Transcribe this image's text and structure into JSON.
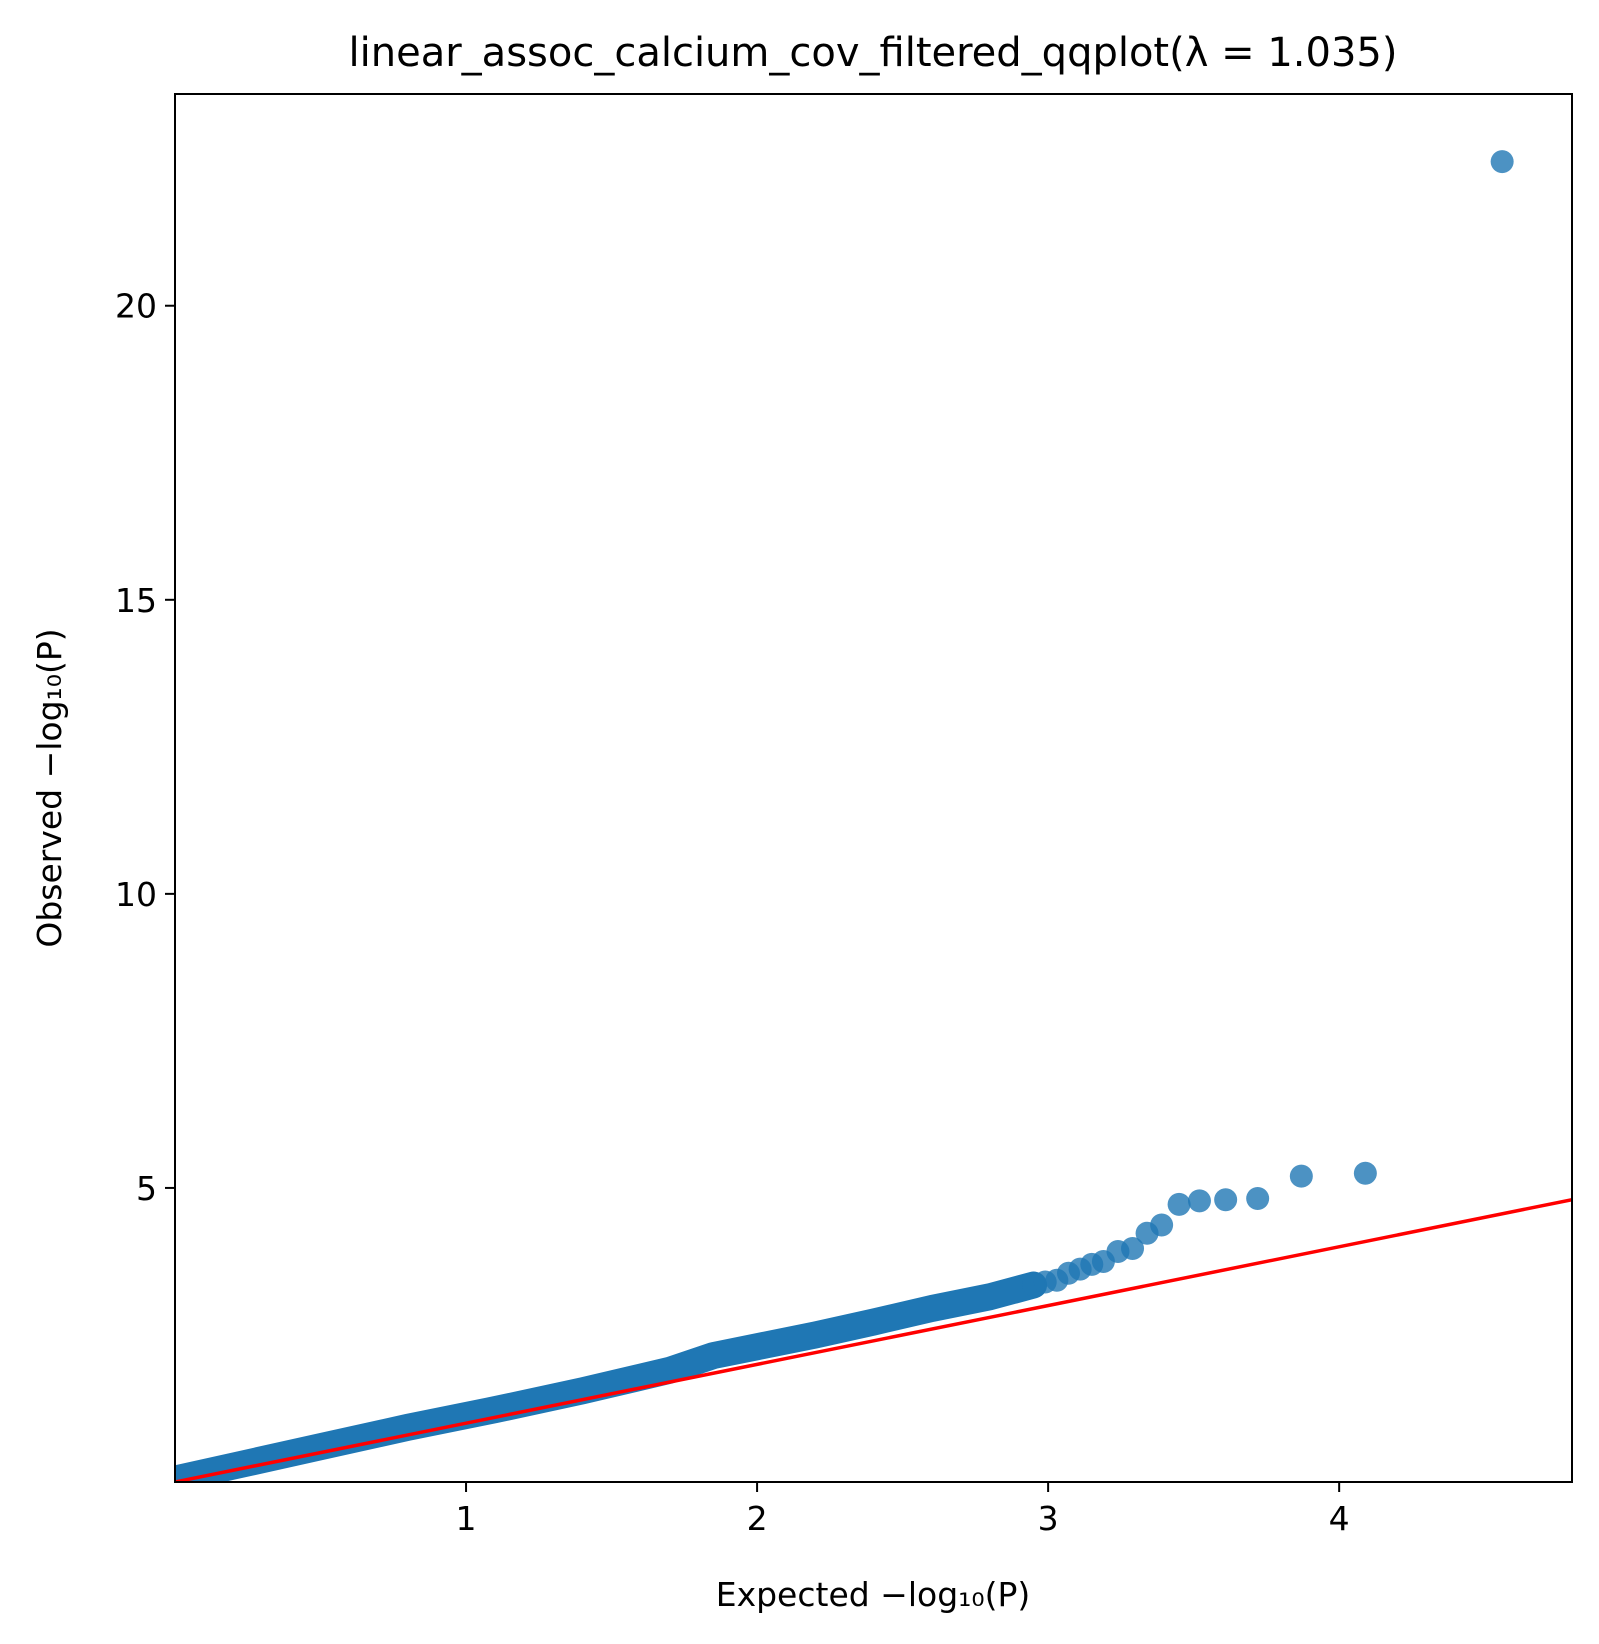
{
  "chart_data": {
    "type": "scatter",
    "title": "linear_assoc_calcium_cov_filtered_qqplot(λ = 1.035)",
    "xlabel": "Expected −log₁₀(P)",
    "ylabel": "Observed −log₁₀(P)",
    "xlim": [
      0.0,
      4.8
    ],
    "ylim": [
      0.0,
      23.6
    ],
    "xticks": [
      1,
      2,
      3,
      4
    ],
    "yticks": [
      5,
      10,
      15,
      20
    ],
    "grid": false,
    "legend": "none",
    "series": [
      {
        "kind": "points",
        "color": "#1f77b4",
        "x": [
          4.56,
          4.09,
          3.87,
          3.72,
          3.61,
          3.52,
          3.45,
          3.39,
          3.34,
          3.29,
          3.24,
          3.19,
          3.15,
          3.11,
          3.07,
          3.03,
          2.99,
          2.95
        ],
        "y": [
          22.45,
          5.25,
          5.2,
          4.82,
          4.8,
          4.78,
          4.72,
          4.37,
          4.23,
          3.97,
          3.92,
          3.75,
          3.7,
          3.62,
          3.55,
          3.43,
          3.4,
          3.35
        ]
      },
      {
        "kind": "dense-band",
        "color": "#1f77b4",
        "x": [
          0.0,
          0.2,
          0.5,
          0.8,
          1.1,
          1.4,
          1.7,
          1.85,
          2.0,
          2.2,
          2.4,
          2.6,
          2.8,
          2.95
        ],
        "y": [
          0.05,
          0.27,
          0.6,
          0.93,
          1.23,
          1.55,
          1.9,
          2.15,
          2.3,
          2.5,
          2.72,
          2.95,
          3.15,
          3.35
        ]
      },
      {
        "kind": "line",
        "color": "#ff0000",
        "x": [
          0.0,
          4.8
        ],
        "y": [
          0.0,
          4.8
        ]
      }
    ]
  }
}
